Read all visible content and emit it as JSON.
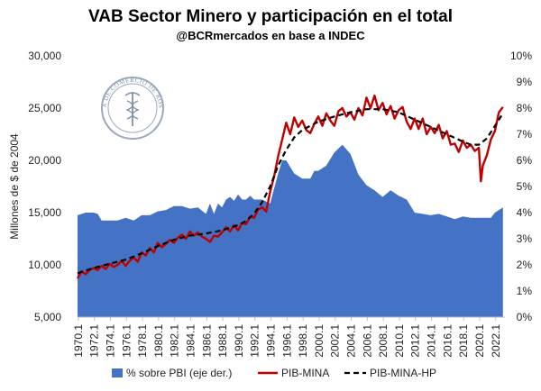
{
  "chart_data": {
    "type": "line+area",
    "title": "VAB Sector Minero y participación en el total",
    "subtitle": "@BCRmercados en base a INDEC",
    "ylabel": "Millones de $ de 2004",
    "y_left": {
      "min": 5000,
      "max": 30000,
      "ticks": [
        "5,000",
        "10,000",
        "15,000",
        "20,000",
        "25,000",
        "30,000"
      ],
      "tick_values": [
        5000,
        10000,
        15000,
        20000,
        25000,
        30000
      ]
    },
    "y_right": {
      "min": 0,
      "max": 10,
      "ticks": [
        "0%",
        "1%",
        "2%",
        "3%",
        "4%",
        "5%",
        "6%",
        "7%",
        "8%",
        "9%",
        "10%"
      ],
      "tick_values": [
        0,
        1,
        2,
        3,
        4,
        5,
        6,
        7,
        8,
        9,
        10
      ]
    },
    "x": {
      "first_year": 1970,
      "last_year": 2023,
      "labels": [
        "1970.1",
        "1972.1",
        "1974.1",
        "1976.1",
        "1978.1",
        "1980.1",
        "1982.1",
        "1984.1",
        "1986.1",
        "1988.1",
        "1990.1",
        "1992.1",
        "1994.1",
        "1996.1",
        "1998.1",
        "2000.1",
        "2002.1",
        "2004.1",
        "2006.1",
        "2008.1",
        "2010.1",
        "2012.1",
        "2014.1",
        "2016.1",
        "2018.1",
        "2020.1",
        "2022.1"
      ]
    },
    "grid": false,
    "legend_position": "bottom",
    "series": [
      {
        "name": "% sobre PBI (eje der.)",
        "kind": "area",
        "axis": "right",
        "color": "#4472C4",
        "points": [
          [
            1970.0,
            3.9
          ],
          [
            1971.0,
            4.0
          ],
          [
            1972.0,
            4.0
          ],
          [
            1972.5,
            3.95
          ],
          [
            1973.0,
            3.7
          ],
          [
            1974.0,
            3.7
          ],
          [
            1975.0,
            3.7
          ],
          [
            1976.0,
            3.8
          ],
          [
            1977.0,
            3.7
          ],
          [
            1978.0,
            3.9
          ],
          [
            1979.0,
            3.9
          ],
          [
            1980.0,
            4.05
          ],
          [
            1981.0,
            4.1
          ],
          [
            1982.0,
            4.25
          ],
          [
            1983.0,
            4.25
          ],
          [
            1984.0,
            4.15
          ],
          [
            1985.0,
            4.2
          ],
          [
            1986.0,
            3.95
          ],
          [
            1986.5,
            4.35
          ],
          [
            1987.0,
            3.95
          ],
          [
            1987.5,
            4.35
          ],
          [
            1988.0,
            4.2
          ],
          [
            1988.5,
            4.5
          ],
          [
            1989.0,
            4.6
          ],
          [
            1989.5,
            4.45
          ],
          [
            1990.0,
            4.7
          ],
          [
            1990.5,
            4.5
          ],
          [
            1991.0,
            4.5
          ],
          [
            1991.5,
            4.65
          ],
          [
            1992.0,
            4.5
          ],
          [
            1993.0,
            4.5
          ],
          [
            1994.0,
            4.35
          ],
          [
            1995.0,
            5.5
          ],
          [
            1995.5,
            6.0
          ],
          [
            1996.0,
            6.0
          ],
          [
            1997.0,
            5.5
          ],
          [
            1998.0,
            5.3
          ],
          [
            1999.0,
            5.3
          ],
          [
            1999.5,
            5.6
          ],
          [
            2000.0,
            5.6
          ],
          [
            2001.0,
            5.8
          ],
          [
            2002.0,
            6.3
          ],
          [
            2003.0,
            6.6
          ],
          [
            2004.0,
            6.25
          ],
          [
            2004.5,
            5.85
          ],
          [
            2005.0,
            5.45
          ],
          [
            2006.0,
            5.05
          ],
          [
            2007.0,
            4.85
          ],
          [
            2008.0,
            4.6
          ],
          [
            2009.0,
            4.85
          ],
          [
            2010.0,
            4.65
          ],
          [
            2011.0,
            4.5
          ],
          [
            2012.0,
            4.0
          ],
          [
            2013.0,
            3.95
          ],
          [
            2014.0,
            3.9
          ],
          [
            2015.0,
            3.95
          ],
          [
            2016.0,
            3.85
          ],
          [
            2017.0,
            3.75
          ],
          [
            2018.0,
            3.85
          ],
          [
            2019.0,
            3.8
          ],
          [
            2020.0,
            3.8
          ],
          [
            2021.0,
            3.8
          ],
          [
            2021.5,
            3.8
          ],
          [
            2022.0,
            4.0
          ],
          [
            2023.0,
            4.2
          ]
        ]
      },
      {
        "name": "PIB-MINA",
        "kind": "line",
        "axis": "left",
        "color": "#C00000",
        "points": [
          [
            1970.0,
            8700
          ],
          [
            1970.5,
            9400
          ],
          [
            1971.0,
            9100
          ],
          [
            1971.5,
            9500
          ],
          [
            1972.0,
            9700
          ],
          [
            1972.5,
            9500
          ],
          [
            1973.0,
            9900
          ],
          [
            1973.5,
            9600
          ],
          [
            1974.0,
            10100
          ],
          [
            1974.5,
            9800
          ],
          [
            1975.0,
            10000
          ],
          [
            1975.5,
            10400
          ],
          [
            1976.0,
            9900
          ],
          [
            1976.5,
            10400
          ],
          [
            1977.0,
            10700
          ],
          [
            1977.5,
            10300
          ],
          [
            1978.0,
            11200
          ],
          [
            1978.5,
            10900
          ],
          [
            1979.0,
            11600
          ],
          [
            1979.5,
            11200
          ],
          [
            1980.0,
            12100
          ],
          [
            1980.5,
            11700
          ],
          [
            1981.0,
            12000
          ],
          [
            1981.5,
            12400
          ],
          [
            1982.0,
            12100
          ],
          [
            1982.5,
            12600
          ],
          [
            1983.0,
            12900
          ],
          [
            1983.5,
            12500
          ],
          [
            1984.0,
            13200
          ],
          [
            1984.5,
            12800
          ],
          [
            1985.0,
            13100
          ],
          [
            1985.5,
            12700
          ],
          [
            1986.0,
            12500
          ],
          [
            1986.5,
            12200
          ],
          [
            1987.0,
            12800
          ],
          [
            1987.5,
            12700
          ],
          [
            1988.0,
            13100
          ],
          [
            1988.5,
            13600
          ],
          [
            1989.0,
            13200
          ],
          [
            1989.5,
            13800
          ],
          [
            1990.0,
            13300
          ],
          [
            1990.5,
            14000
          ],
          [
            1991.0,
            13900
          ],
          [
            1991.5,
            14600
          ],
          [
            1992.0,
            14500
          ],
          [
            1992.5,
            15300
          ],
          [
            1993.0,
            15500
          ],
          [
            1993.5,
            15100
          ],
          [
            1994.0,
            17000
          ],
          [
            1994.5,
            18500
          ],
          [
            1995.0,
            20400
          ],
          [
            1995.5,
            22000
          ],
          [
            1996.0,
            23600
          ],
          [
            1996.5,
            22500
          ],
          [
            1997.0,
            24100
          ],
          [
            1997.5,
            23200
          ],
          [
            1998.0,
            23800
          ],
          [
            1998.5,
            22900
          ],
          [
            1999.0,
            22600
          ],
          [
            1999.5,
            23500
          ],
          [
            2000.0,
            24200
          ],
          [
            2000.5,
            23300
          ],
          [
            2001.0,
            24500
          ],
          [
            2001.5,
            23800
          ],
          [
            2002.0,
            23300
          ],
          [
            2002.5,
            24700
          ],
          [
            2003.0,
            25000
          ],
          [
            2003.5,
            24200
          ],
          [
            2004.0,
            24600
          ],
          [
            2004.5,
            23900
          ],
          [
            2005.0,
            25000
          ],
          [
            2005.5,
            24300
          ],
          [
            2006.0,
            26000
          ],
          [
            2006.5,
            25000
          ],
          [
            2007.0,
            26200
          ],
          [
            2007.5,
            24800
          ],
          [
            2008.0,
            25500
          ],
          [
            2008.5,
            24400
          ],
          [
            2009.0,
            25200
          ],
          [
            2009.5,
            24000
          ],
          [
            2010.0,
            24800
          ],
          [
            2010.5,
            25100
          ],
          [
            2011.0,
            23700
          ],
          [
            2011.5,
            23000
          ],
          [
            2012.0,
            24000
          ],
          [
            2012.5,
            23000
          ],
          [
            2013.0,
            24000
          ],
          [
            2013.5,
            22500
          ],
          [
            2014.0,
            23200
          ],
          [
            2014.5,
            22600
          ],
          [
            2015.0,
            23400
          ],
          [
            2015.5,
            22100
          ],
          [
            2016.0,
            22800
          ],
          [
            2016.5,
            21500
          ],
          [
            2017.0,
            21600
          ],
          [
            2017.5,
            20800
          ],
          [
            2018.0,
            21900
          ],
          [
            2018.5,
            21200
          ],
          [
            2019.0,
            21500
          ],
          [
            2019.5,
            20900
          ],
          [
            2020.0,
            21200
          ],
          [
            2020.25,
            18000
          ],
          [
            2020.5,
            19500
          ],
          [
            2021.0,
            20500
          ],
          [
            2021.5,
            22000
          ],
          [
            2022.0,
            22800
          ],
          [
            2022.5,
            24600
          ],
          [
            2023.0,
            25100
          ]
        ]
      },
      {
        "name": "PIB-MINA-HP",
        "kind": "dashed-line",
        "axis": "left",
        "color": "#000000",
        "points": [
          [
            1970.0,
            9200
          ],
          [
            1972.0,
            9700
          ],
          [
            1974.0,
            10100
          ],
          [
            1976.0,
            10500
          ],
          [
            1978.0,
            11100
          ],
          [
            1980.0,
            11800
          ],
          [
            1982.0,
            12400
          ],
          [
            1984.0,
            12800
          ],
          [
            1986.0,
            13000
          ],
          [
            1988.0,
            13300
          ],
          [
            1990.0,
            13800
          ],
          [
            1991.0,
            14200
          ],
          [
            1992.0,
            14900
          ],
          [
            1993.0,
            16000
          ],
          [
            1994.0,
            17500
          ],
          [
            1995.0,
            19500
          ],
          [
            1996.0,
            21000
          ],
          [
            1997.0,
            22200
          ],
          [
            1998.0,
            22900
          ],
          [
            1999.0,
            23300
          ],
          [
            2000.0,
            23700
          ],
          [
            2002.0,
            24200
          ],
          [
            2004.0,
            24600
          ],
          [
            2006.0,
            24900
          ],
          [
            2008.0,
            24900
          ],
          [
            2010.0,
            24600
          ],
          [
            2012.0,
            23900
          ],
          [
            2014.0,
            23200
          ],
          [
            2016.0,
            22500
          ],
          [
            2018.0,
            21800
          ],
          [
            2019.0,
            21500
          ],
          [
            2020.0,
            21500
          ],
          [
            2021.0,
            22100
          ],
          [
            2022.0,
            23300
          ],
          [
            2023.0,
            24500
          ]
        ]
      }
    ]
  },
  "watermark": {
    "top_text": "BOLSA DE COMERCIO DE ROSARIO",
    "icon": "caduceus-seal-icon"
  }
}
